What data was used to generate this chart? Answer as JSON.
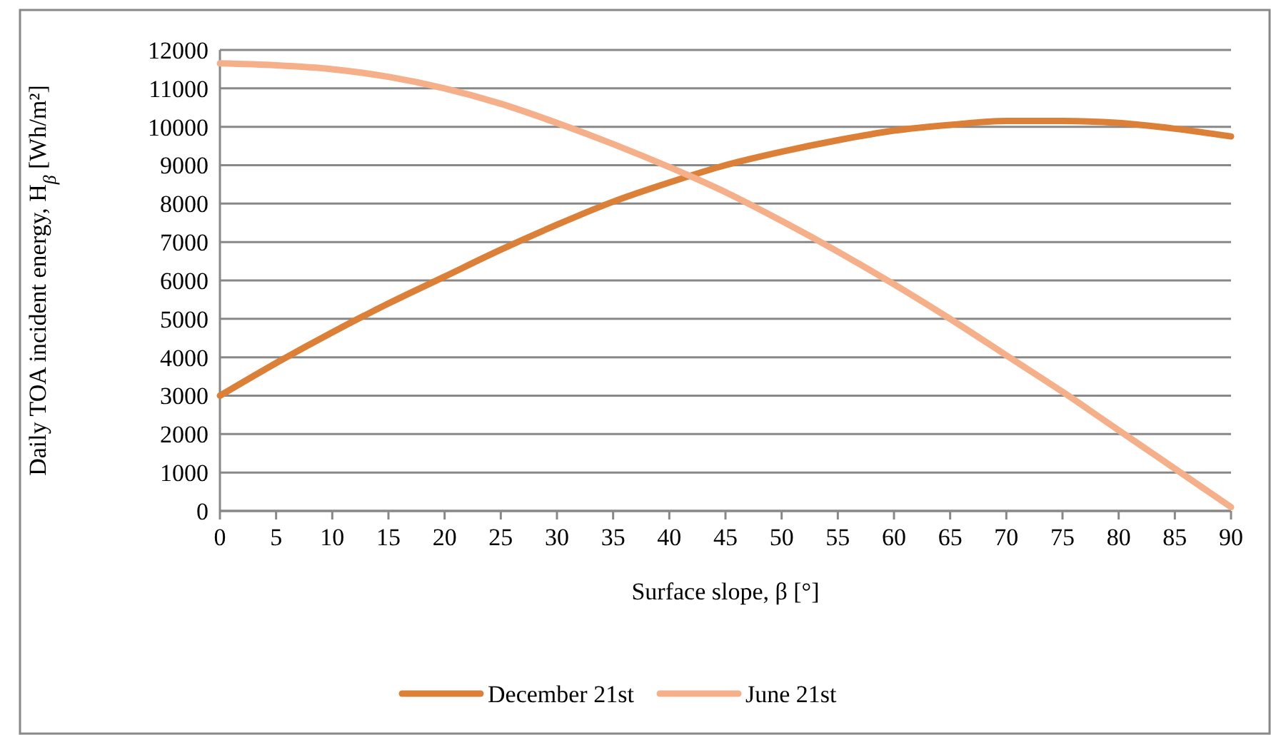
{
  "chart_data": {
    "type": "line",
    "xlabel": "Surface slope, β [°]",
    "ylabel": "Daily TOA incident energy, H$_{β}$ [Wh/m²]",
    "x": [
      0,
      5,
      10,
      15,
      20,
      25,
      30,
      35,
      40,
      45,
      50,
      55,
      60,
      65,
      70,
      75,
      80,
      85,
      90
    ],
    "series": [
      {
        "name": "December 21st",
        "color": "#dc8038",
        "values": [
          3000,
          3850,
          4650,
          5400,
          6100,
          6800,
          7450,
          8050,
          8550,
          9000,
          9350,
          9650,
          9900,
          10050,
          10150,
          10150,
          10100,
          9950,
          9750
        ]
      },
      {
        "name": "June 21st",
        "color": "#f5b08a",
        "values": [
          11650,
          11600,
          11500,
          11300,
          11000,
          10600,
          10100,
          9550,
          8950,
          8300,
          7550,
          6750,
          5900,
          5000,
          4050,
          3100,
          2100,
          1100,
          100
        ]
      }
    ],
    "xlim": [
      0,
      90
    ],
    "xticks": [
      0,
      5,
      10,
      15,
      20,
      25,
      30,
      35,
      40,
      45,
      50,
      55,
      60,
      65,
      70,
      75,
      80,
      85,
      90
    ],
    "ylim": [
      0,
      12000
    ],
    "yticks": [
      0,
      1000,
      2000,
      3000,
      4000,
      5000,
      6000,
      7000,
      8000,
      9000,
      10000,
      11000,
      12000
    ],
    "grid": "y",
    "legend": "bottom",
    "line_style": "solid"
  }
}
